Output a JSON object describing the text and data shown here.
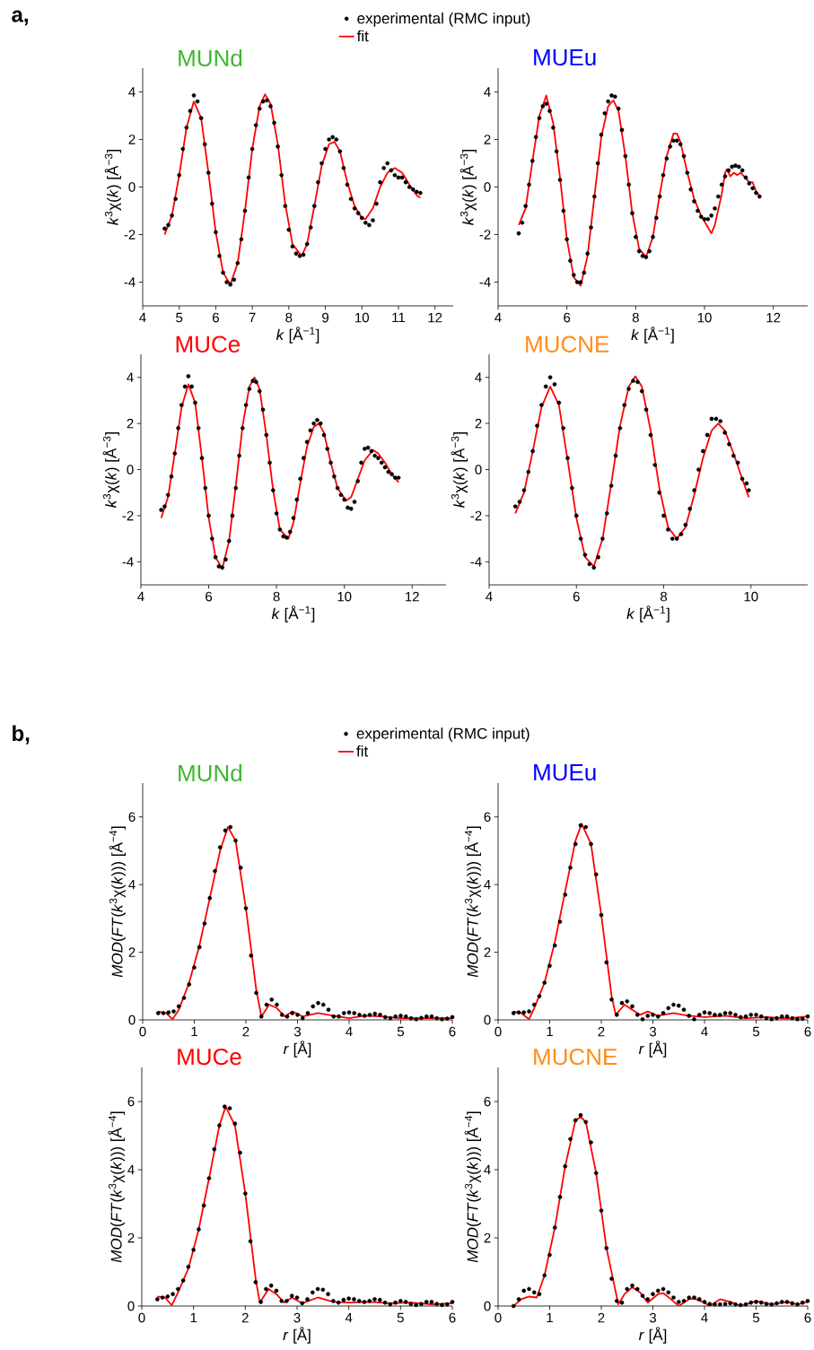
{
  "chart_data": [
    {
      "type": "line",
      "title": "MUNd",
      "xlabel": "*k* [Å$^{−1}$]",
      "ylabel": "*k*$^{3}$χ(*k*) [Å$^{−3}$]",
      "annotations": [
        "a,"
      ],
      "legend": "top",
      "xlim": [
        4,
        12.5
      ],
      "ylim": [
        -5,
        5
      ],
      "xticks": [
        4,
        5,
        6,
        7,
        8,
        9,
        10,
        11,
        12
      ],
      "yticks": [
        -4,
        -2,
        0,
        2,
        4
      ],
      "series": [
        {
          "name": "experimental (RMC input)",
          "type": "scatter",
          "marker": "circle",
          "color": "#000000",
          "x": [
            4.6,
            4.7,
            4.8,
            4.9,
            5.0,
            5.1,
            5.2,
            5.3,
            5.4,
            5.5,
            5.6,
            5.7,
            5.8,
            5.9,
            6.0,
            6.1,
            6.2,
            6.3,
            6.4,
            6.5,
            6.6,
            6.7,
            6.8,
            6.9,
            7.0,
            7.1,
            7.2,
            7.3,
            7.4,
            7.5,
            7.6,
            7.7,
            7.8,
            7.9,
            8.0,
            8.1,
            8.2,
            8.3,
            8.4,
            8.5,
            8.6,
            8.7,
            8.8,
            8.9,
            9.0,
            9.1,
            9.2,
            9.3,
            9.4,
            9.5,
            9.6,
            9.7,
            9.8,
            9.9,
            10.0,
            10.1,
            10.2,
            10.3,
            10.4,
            10.5,
            10.6,
            10.7,
            10.8,
            10.9,
            11.0,
            11.1,
            11.2,
            11.3,
            11.4,
            11.5,
            11.6
          ],
          "values": [
            -1.75,
            -1.6,
            -1.2,
            -0.5,
            0.5,
            1.6,
            2.5,
            3.2,
            3.85,
            3.6,
            2.9,
            1.8,
            0.6,
            -0.7,
            -1.9,
            -2.9,
            -3.6,
            -4.0,
            -4.1,
            -3.9,
            -3.2,
            -2.2,
            -1.0,
            0.4,
            1.6,
            2.6,
            3.3,
            3.6,
            3.65,
            3.4,
            2.7,
            1.7,
            0.5,
            -0.8,
            -1.8,
            -2.5,
            -2.8,
            -2.9,
            -2.85,
            -2.4,
            -1.7,
            -0.8,
            0.2,
            1.0,
            1.6,
            2.0,
            2.1,
            2.0,
            1.5,
            0.8,
            0.1,
            -0.5,
            -0.9,
            -1.1,
            -1.3,
            -1.5,
            -1.6,
            -1.4,
            -0.7,
            0.2,
            0.8,
            1.0,
            0.7,
            0.5,
            0.4,
            0.4,
            0.2,
            0.0,
            -0.1,
            -0.2,
            -0.25
          ]
        },
        {
          "name": "fit",
          "type": "line",
          "marker": "none",
          "color": "#ff0000",
          "x": [
            4.6,
            4.8,
            5.0,
            5.2,
            5.4,
            5.6,
            5.8,
            6.0,
            6.2,
            6.4,
            6.6,
            6.8,
            7.0,
            7.2,
            7.35,
            7.5,
            7.7,
            7.9,
            8.1,
            8.35,
            8.5,
            8.7,
            8.9,
            9.1,
            9.25,
            9.4,
            9.6,
            9.8,
            10.0,
            10.1,
            10.3,
            10.5,
            10.7,
            10.9,
            11.1,
            11.3,
            11.5,
            11.6
          ],
          "values": [
            -2.0,
            -1.2,
            0.5,
            2.5,
            3.6,
            2.9,
            0.6,
            -1.9,
            -3.6,
            -4.1,
            -3.2,
            -1.0,
            1.6,
            3.4,
            3.9,
            3.5,
            1.8,
            -0.7,
            -2.4,
            -2.9,
            -2.4,
            -0.8,
            0.9,
            1.8,
            1.9,
            1.5,
            0.2,
            -0.8,
            -1.3,
            -1.35,
            -0.9,
            0.0,
            0.6,
            0.8,
            0.6,
            0.1,
            -0.35,
            -0.45
          ]
        }
      ]
    },
    {
      "type": "line",
      "title": "MUEu",
      "xlabel": "*k* [Å$^{−1}$]",
      "ylabel": "*k*$^{3}$χ(*k*) [Å$^{−3}$]",
      "xlim": [
        4,
        13
      ],
      "ylim": [
        -5,
        5
      ],
      "xticks": [
        4,
        6,
        8,
        10,
        12
      ],
      "yticks": [
        -4,
        -2,
        0,
        2,
        4
      ],
      "series": [
        {
          "type": "scatter",
          "marker": "circle",
          "color": "#000000",
          "x": [
            4.6,
            4.7,
            4.8,
            4.9,
            5.0,
            5.1,
            5.2,
            5.3,
            5.4,
            5.5,
            5.6,
            5.7,
            5.8,
            5.9,
            6.0,
            6.1,
            6.2,
            6.3,
            6.4,
            6.5,
            6.6,
            6.7,
            6.8,
            6.9,
            7.0,
            7.1,
            7.2,
            7.3,
            7.4,
            7.5,
            7.6,
            7.7,
            7.8,
            7.9,
            8.0,
            8.1,
            8.2,
            8.3,
            8.4,
            8.5,
            8.6,
            8.7,
            8.8,
            8.9,
            9.0,
            9.1,
            9.2,
            9.3,
            9.4,
            9.5,
            9.6,
            9.7,
            9.8,
            9.9,
            10.0,
            10.1,
            10.2,
            10.3,
            10.4,
            10.5,
            10.6,
            10.7,
            10.8,
            10.9,
            11.0,
            11.1,
            11.2,
            11.3,
            11.4,
            11.5,
            11.6
          ],
          "values": [
            -1.95,
            -1.5,
            -0.8,
            0.1,
            1.1,
            2.1,
            2.9,
            3.4,
            3.5,
            3.2,
            2.5,
            1.5,
            0.3,
            -1.0,
            -2.2,
            -3.1,
            -3.7,
            -4.0,
            -4.0,
            -3.6,
            -2.8,
            -1.7,
            -0.4,
            1.0,
            2.2,
            3.1,
            3.6,
            3.85,
            3.8,
            3.3,
            2.4,
            1.3,
            0.1,
            -1.1,
            -2.1,
            -2.7,
            -2.9,
            -2.95,
            -2.7,
            -2.1,
            -1.3,
            -0.4,
            0.5,
            1.2,
            1.7,
            1.95,
            1.95,
            1.8,
            1.3,
            0.6,
            -0.1,
            -0.6,
            -1.0,
            -1.25,
            -1.35,
            -1.35,
            -1.2,
            -0.9,
            -0.4,
            0.1,
            0.45,
            0.7,
            0.85,
            0.9,
            0.85,
            0.7,
            0.4,
            0.15,
            -0.05,
            -0.25,
            -0.4
          ]
        },
        {
          "type": "line",
          "marker": "none",
          "color": "#ff0000",
          "x": [
            4.6,
            4.8,
            5.0,
            5.2,
            5.4,
            5.6,
            5.8,
            6.0,
            6.2,
            6.4,
            6.6,
            6.8,
            7.0,
            7.2,
            7.35,
            7.5,
            7.7,
            7.9,
            8.1,
            8.3,
            8.5,
            8.7,
            8.9,
            9.1,
            9.2,
            9.3,
            9.5,
            9.7,
            9.9,
            10.1,
            10.2,
            10.3,
            10.5,
            10.6,
            10.65,
            10.75,
            10.85,
            10.95,
            11.05,
            11.15,
            11.3,
            11.4,
            11.5,
            11.6
          ],
          "values": [
            -1.6,
            -0.9,
            1.1,
            3.0,
            3.85,
            2.7,
            0.4,
            -2.2,
            -3.8,
            -4.15,
            -2.9,
            -0.4,
            2.1,
            3.4,
            3.65,
            3.2,
            1.3,
            -1.1,
            -2.6,
            -2.95,
            -2.1,
            -0.3,
            1.3,
            2.25,
            2.25,
            1.9,
            0.6,
            -0.5,
            -1.2,
            -1.7,
            -1.95,
            -1.6,
            -0.3,
            0.6,
            0.75,
            0.45,
            0.6,
            0.5,
            0.6,
            0.45,
            0.2,
            0.2,
            -0.2,
            -0.35
          ]
        }
      ]
    },
    {
      "type": "line",
      "title": "MUCe",
      "xlabel": "*k* [Å$^{−1}$]",
      "ylabel": "*k*$^{3}$χ(*k*) [Å$^{−3}$]",
      "xlim": [
        4,
        13
      ],
      "ylim": [
        -5,
        5
      ],
      "xticks": [
        4,
        6,
        8,
        10,
        12
      ],
      "yticks": [
        -4,
        -2,
        0,
        2,
        4
      ],
      "series": [
        {
          "type": "scatter",
          "marker": "circle",
          "color": "#000000",
          "x": [
            4.6,
            4.7,
            4.8,
            4.9,
            5.0,
            5.1,
            5.2,
            5.3,
            5.4,
            5.5,
            5.6,
            5.7,
            5.8,
            5.9,
            6.0,
            6.1,
            6.2,
            6.3,
            6.4,
            6.5,
            6.6,
            6.7,
            6.8,
            6.9,
            7.0,
            7.1,
            7.2,
            7.3,
            7.4,
            7.5,
            7.6,
            7.7,
            7.8,
            7.9,
            8.0,
            8.1,
            8.2,
            8.3,
            8.4,
            8.5,
            8.6,
            8.7,
            8.8,
            8.9,
            9.0,
            9.1,
            9.2,
            9.3,
            9.4,
            9.5,
            9.6,
            9.7,
            9.8,
            9.9,
            10.0,
            10.1,
            10.2,
            10.3,
            10.4,
            10.5,
            10.6,
            10.7,
            10.8,
            10.9,
            11.0,
            11.1,
            11.2,
            11.3,
            11.4,
            11.5,
            11.6
          ],
          "values": [
            -1.75,
            -1.6,
            -1.1,
            -0.3,
            0.7,
            1.8,
            2.8,
            3.6,
            4.05,
            3.6,
            2.9,
            1.8,
            0.5,
            -0.8,
            -2.0,
            -3.0,
            -3.8,
            -4.2,
            -4.25,
            -3.9,
            -3.1,
            -2.0,
            -0.8,
            0.6,
            1.8,
            2.8,
            3.5,
            3.85,
            3.8,
            3.4,
            2.6,
            1.5,
            0.3,
            -0.9,
            -1.9,
            -2.6,
            -2.9,
            -2.95,
            -2.7,
            -2.1,
            -1.3,
            -0.4,
            0.5,
            1.2,
            1.7,
            2.0,
            2.15,
            2.0,
            1.5,
            0.9,
            0.3,
            -0.3,
            -0.8,
            -1.1,
            -1.3,
            -1.65,
            -1.7,
            -1.4,
            -0.5,
            0.3,
            0.9,
            0.95,
            0.8,
            0.6,
            0.5,
            0.3,
            0.1,
            -0.1,
            -0.2,
            -0.35,
            -0.35
          ]
        },
        {
          "type": "line",
          "marker": "none",
          "color": "#ff0000",
          "x": [
            4.6,
            4.8,
            5.0,
            5.2,
            5.4,
            5.6,
            5.8,
            6.0,
            6.2,
            6.4,
            6.6,
            6.8,
            7.0,
            7.2,
            7.35,
            7.5,
            7.7,
            7.9,
            8.1,
            8.35,
            8.5,
            8.7,
            8.9,
            9.1,
            9.25,
            9.4,
            9.6,
            9.8,
            10.05,
            10.2,
            10.4,
            10.6,
            10.85,
            11.0,
            11.2,
            11.4,
            11.6
          ],
          "values": [
            -2.1,
            -1.2,
            0.7,
            2.7,
            3.7,
            2.9,
            0.5,
            -2.1,
            -3.8,
            -4.3,
            -3.1,
            -0.7,
            1.9,
            3.6,
            4.0,
            3.5,
            1.5,
            -0.9,
            -2.6,
            -3.0,
            -2.3,
            -0.6,
            1.0,
            1.85,
            2.0,
            1.6,
            0.3,
            -0.8,
            -1.35,
            -1.2,
            -0.4,
            0.4,
            0.85,
            0.7,
            0.3,
            -0.2,
            -0.55
          ]
        }
      ]
    },
    {
      "type": "line",
      "title": "MUCNE",
      "xlabel": "*k* [Å$^{−1}$]",
      "ylabel": "*k*$^{3}$χ(*k*) [Å$^{−3}$]",
      "xlim": [
        4,
        11.3
      ],
      "ylim": [
        -5,
        5
      ],
      "xticks": [
        4,
        6,
        8,
        10
      ],
      "yticks": [
        -4,
        -2,
        0,
        2,
        4
      ],
      "series": [
        {
          "type": "scatter",
          "marker": "circle",
          "color": "#000000",
          "x": [
            4.6,
            4.7,
            4.8,
            4.9,
            5.0,
            5.1,
            5.2,
            5.3,
            5.4,
            5.5,
            5.6,
            5.7,
            5.8,
            5.9,
            6.0,
            6.1,
            6.2,
            6.3,
            6.4,
            6.5,
            6.6,
            6.7,
            6.8,
            6.9,
            7.0,
            7.1,
            7.2,
            7.3,
            7.4,
            7.5,
            7.6,
            7.7,
            7.8,
            7.9,
            8.0,
            8.1,
            8.2,
            8.3,
            8.4,
            8.5,
            8.6,
            8.7,
            8.8,
            8.9,
            9.0,
            9.1,
            9.2,
            9.3,
            9.4,
            9.5,
            9.6,
            9.7,
            9.8,
            9.9,
            9.95
          ],
          "values": [
            -1.6,
            -1.4,
            -0.9,
            -0.1,
            0.8,
            1.9,
            2.8,
            3.6,
            4.0,
            3.7,
            2.9,
            1.8,
            0.5,
            -0.8,
            -2.0,
            -3.0,
            -3.7,
            -4.1,
            -4.25,
            -3.8,
            -3.0,
            -1.9,
            -0.7,
            0.6,
            1.8,
            2.8,
            3.5,
            3.85,
            3.8,
            3.4,
            2.6,
            1.5,
            0.2,
            -1.0,
            -2.0,
            -2.6,
            -3.0,
            -3.0,
            -2.8,
            -2.4,
            -1.7,
            -0.9,
            0.0,
            0.8,
            1.5,
            2.2,
            2.2,
            2.1,
            1.6,
            1.1,
            0.6,
            0.3,
            -0.4,
            -0.6,
            -0.9
          ]
        },
        {
          "type": "line",
          "marker": "none",
          "color": "#ff0000",
          "x": [
            4.6,
            4.8,
            5.0,
            5.2,
            5.4,
            5.6,
            5.8,
            6.0,
            6.2,
            6.4,
            6.6,
            6.8,
            7.0,
            7.2,
            7.35,
            7.5,
            7.7,
            7.9,
            8.1,
            8.3,
            8.5,
            8.7,
            8.9,
            9.1,
            9.25,
            9.4,
            9.6,
            9.8,
            9.95
          ],
          "values": [
            -1.9,
            -1.0,
            0.8,
            2.7,
            3.6,
            2.8,
            0.4,
            -2.1,
            -3.8,
            -4.2,
            -3.0,
            -0.6,
            1.9,
            3.6,
            4.05,
            3.6,
            1.7,
            -0.8,
            -2.5,
            -3.0,
            -2.5,
            -1.1,
            0.5,
            1.7,
            2.0,
            1.7,
            0.7,
            -0.4,
            -1.2
          ]
        }
      ]
    },
    {
      "type": "line",
      "title": "MUNd",
      "xlabel": "*r* [Å]",
      "ylabel": "*MOD*(*FT*(*k*$^{3}$χ(*k*))) [Å$^{−4}$]",
      "annotations": [
        "b,"
      ],
      "legend": "top",
      "xlim": [
        0,
        6
      ],
      "ylim": [
        0,
        7
      ],
      "xticks": [
        0,
        1,
        2,
        3,
        4,
        5,
        6
      ],
      "yticks": [
        0,
        2,
        4,
        6
      ],
      "series": [
        {
          "name": "experimental (RMC input)",
          "type": "scatter",
          "marker": "circle",
          "color": "#000000",
          "x": [
            0.3,
            0.4,
            0.5,
            0.6,
            0.7,
            0.8,
            0.9,
            1.0,
            1.1,
            1.2,
            1.3,
            1.4,
            1.5,
            1.6,
            1.7,
            1.8,
            1.9,
            2.0,
            2.1,
            2.2,
            2.3,
            2.4,
            2.5,
            2.6,
            2.7,
            2.8,
            2.9,
            3.0,
            3.1,
            3.2,
            3.3,
            3.4,
            3.5,
            3.6,
            3.7,
            3.8,
            3.9,
            4.0,
            4.1,
            4.2,
            4.3,
            4.4,
            4.5,
            4.6,
            4.7,
            4.8,
            4.9,
            5.0,
            5.1,
            5.2,
            5.3,
            5.4,
            5.5,
            5.6,
            5.7,
            5.8,
            5.9,
            6.0
          ],
          "values": [
            0.2,
            0.2,
            0.22,
            0.25,
            0.4,
            0.65,
            1.05,
            1.55,
            2.15,
            2.85,
            3.6,
            4.4,
            5.1,
            5.6,
            5.7,
            5.3,
            4.5,
            3.3,
            1.9,
            0.8,
            0.1,
            0.45,
            0.6,
            0.45,
            0.15,
            0.1,
            0.2,
            0.15,
            0.05,
            0.2,
            0.4,
            0.5,
            0.45,
            0.3,
            0.1,
            0.1,
            0.2,
            0.22,
            0.2,
            0.15,
            0.12,
            0.15,
            0.18,
            0.15,
            0.08,
            0.05,
            0.1,
            0.12,
            0.1,
            0.05,
            0.02,
            0.06,
            0.1,
            0.1,
            0.05,
            0.02,
            0.04,
            0.08
          ]
        },
        {
          "name": "fit",
          "type": "line",
          "marker": "none",
          "color": "#ff0000",
          "x": [
            0.3,
            0.45,
            0.58,
            0.7,
            0.9,
            1.1,
            1.3,
            1.5,
            1.65,
            1.8,
            2.0,
            2.2,
            2.3,
            2.45,
            2.6,
            2.75,
            2.9,
            3.1,
            3.4,
            3.7,
            4.0,
            4.3,
            4.6,
            5.0,
            5.5,
            6.0
          ],
          "values": [
            0.25,
            0.2,
            0.02,
            0.3,
            1.1,
            2.2,
            3.6,
            5.0,
            5.7,
            5.3,
            3.3,
            0.9,
            0.1,
            0.45,
            0.35,
            0.1,
            0.25,
            0.1,
            0.2,
            0.12,
            0.05,
            0.12,
            0.1,
            0.05,
            0.05,
            0.05
          ]
        }
      ]
    },
    {
      "type": "line",
      "title": "MUEu",
      "xlabel": "*r* [Å]",
      "ylabel": "*MOD*(*FT*(*k*$^{3}$χ(*k*))) [Å$^{−4}$]",
      "xlim": [
        0,
        6
      ],
      "ylim": [
        0,
        7
      ],
      "xticks": [
        0,
        1,
        2,
        3,
        4,
        5,
        6
      ],
      "yticks": [
        0,
        2,
        4,
        6
      ],
      "series": [
        {
          "type": "scatter",
          "marker": "circle",
          "color": "#000000",
          "x": [
            0.3,
            0.4,
            0.5,
            0.6,
            0.7,
            0.8,
            0.9,
            1.0,
            1.1,
            1.2,
            1.3,
            1.4,
            1.5,
            1.6,
            1.7,
            1.8,
            1.9,
            2.0,
            2.1,
            2.2,
            2.3,
            2.4,
            2.5,
            2.6,
            2.7,
            2.8,
            2.9,
            3.0,
            3.1,
            3.2,
            3.3,
            3.4,
            3.5,
            3.6,
            3.7,
            3.8,
            3.9,
            4.0,
            4.1,
            4.2,
            4.3,
            4.4,
            4.5,
            4.6,
            4.7,
            4.8,
            4.9,
            5.0,
            5.1,
            5.2,
            5.3,
            5.4,
            5.5,
            5.6,
            5.7,
            5.8,
            5.9,
            6.0
          ],
          "values": [
            0.2,
            0.22,
            0.22,
            0.25,
            0.45,
            0.7,
            1.1,
            1.6,
            2.2,
            2.9,
            3.7,
            4.5,
            5.2,
            5.75,
            5.7,
            5.2,
            4.3,
            3.1,
            1.7,
            0.6,
            0.15,
            0.5,
            0.55,
            0.4,
            0.15,
            0.02,
            0.12,
            0.15,
            0.1,
            0.2,
            0.35,
            0.45,
            0.42,
            0.3,
            0.12,
            0.02,
            0.15,
            0.22,
            0.2,
            0.15,
            0.15,
            0.2,
            0.2,
            0.15,
            0.08,
            0.1,
            0.15,
            0.15,
            0.1,
            0.05,
            0.02,
            0.05,
            0.1,
            0.1,
            0.05,
            0.02,
            0.03,
            0.1
          ]
        },
        {
          "type": "line",
          "marker": "none",
          "color": "#ff0000",
          "x": [
            0.3,
            0.45,
            0.6,
            0.7,
            0.9,
            1.1,
            1.3,
            1.5,
            1.62,
            1.8,
            2.0,
            2.2,
            2.28,
            2.45,
            2.6,
            2.75,
            2.9,
            3.1,
            3.4,
            3.7,
            4.0,
            4.4,
            4.8,
            5.2,
            5.6,
            6.0
          ],
          "values": [
            0.25,
            0.2,
            0.02,
            0.35,
            1.1,
            2.3,
            3.8,
            5.3,
            5.8,
            5.2,
            3.1,
            0.7,
            0.15,
            0.45,
            0.3,
            0.15,
            0.25,
            0.12,
            0.2,
            0.12,
            0.08,
            0.12,
            0.05,
            0.08,
            0.04,
            0.1
          ]
        }
      ]
    },
    {
      "type": "line",
      "title": "MUCe",
      "xlabel": "*r* [Å]",
      "ylabel": "*MOD*(*FT*(*k*$^{3}$χ(*k*))) [Å$^{−4}$]",
      "xlim": [
        0,
        6
      ],
      "ylim": [
        0,
        7
      ],
      "xticks": [
        0,
        1,
        2,
        3,
        4,
        5,
        6
      ],
      "yticks": [
        0,
        2,
        4,
        6
      ],
      "series": [
        {
          "type": "scatter",
          "marker": "circle",
          "color": "#000000",
          "x": [
            0.3,
            0.4,
            0.5,
            0.6,
            0.7,
            0.8,
            0.9,
            1.0,
            1.1,
            1.2,
            1.3,
            1.4,
            1.5,
            1.6,
            1.7,
            1.8,
            1.9,
            2.0,
            2.1,
            2.2,
            2.3,
            2.4,
            2.5,
            2.6,
            2.7,
            2.8,
            2.9,
            3.0,
            3.1,
            3.2,
            3.3,
            3.4,
            3.5,
            3.6,
            3.7,
            3.8,
            3.9,
            4.0,
            4.1,
            4.2,
            4.3,
            4.4,
            4.5,
            4.6,
            4.7,
            4.8,
            4.9,
            5.0,
            5.1,
            5.2,
            5.3,
            5.4,
            5.5,
            5.6,
            5.7,
            5.8,
            5.9,
            6.0
          ],
          "values": [
            0.2,
            0.25,
            0.28,
            0.35,
            0.5,
            0.75,
            1.15,
            1.65,
            2.25,
            2.95,
            3.75,
            4.6,
            5.3,
            5.85,
            5.8,
            5.35,
            4.5,
            3.3,
            1.9,
            0.7,
            0.12,
            0.5,
            0.6,
            0.45,
            0.15,
            0.15,
            0.3,
            0.25,
            0.08,
            0.2,
            0.4,
            0.5,
            0.48,
            0.35,
            0.15,
            0.1,
            0.18,
            0.22,
            0.2,
            0.15,
            0.12,
            0.15,
            0.2,
            0.18,
            0.1,
            0.05,
            0.1,
            0.15,
            0.12,
            0.06,
            0.03,
            0.06,
            0.12,
            0.12,
            0.06,
            0.03,
            0.05,
            0.12
          ]
        },
        {
          "type": "line",
          "marker": "none",
          "color": "#ff0000",
          "x": [
            0.3,
            0.45,
            0.58,
            0.7,
            0.9,
            1.1,
            1.3,
            1.5,
            1.62,
            1.8,
            2.0,
            2.2,
            2.28,
            2.45,
            2.6,
            2.75,
            2.9,
            3.1,
            3.4,
            3.7,
            4.0,
            4.4,
            4.8,
            5.2,
            5.6,
            6.0
          ],
          "values": [
            0.28,
            0.25,
            0.02,
            0.4,
            1.1,
            2.25,
            3.75,
            5.3,
            5.85,
            5.3,
            3.3,
            0.8,
            0.1,
            0.5,
            0.35,
            0.1,
            0.25,
            0.08,
            0.25,
            0.12,
            0.1,
            0.12,
            0.08,
            0.1,
            0.05,
            0.08
          ]
        }
      ]
    },
    {
      "type": "line",
      "title": "MUCNE",
      "xlabel": "*r* [Å]",
      "ylabel": "*MOD*(*FT*(*k*$^{3}$χ(*k*))) [Å$^{−4}$]",
      "xlim": [
        0,
        6
      ],
      "ylim": [
        0,
        7
      ],
      "xticks": [
        0,
        1,
        2,
        3,
        4,
        5,
        6
      ],
      "yticks": [
        0,
        2,
        4,
        6
      ],
      "series": [
        {
          "type": "scatter",
          "marker": "circle",
          "color": "#000000",
          "x": [
            0.3,
            0.4,
            0.5,
            0.6,
            0.7,
            0.8,
            0.9,
            1.0,
            1.1,
            1.2,
            1.3,
            1.4,
            1.5,
            1.6,
            1.7,
            1.8,
            1.9,
            2.0,
            2.1,
            2.2,
            2.3,
            2.4,
            2.5,
            2.6,
            2.7,
            2.8,
            2.9,
            3.0,
            3.1,
            3.2,
            3.3,
            3.4,
            3.5,
            3.6,
            3.7,
            3.8,
            3.9,
            4.0,
            4.1,
            4.2,
            4.3,
            4.4,
            4.5,
            4.6,
            4.7,
            4.8,
            4.9,
            5.0,
            5.1,
            5.2,
            5.3,
            5.4,
            5.5,
            5.6,
            5.7,
            5.8,
            5.9,
            6.0
          ],
          "values": [
            0.0,
            0.2,
            0.45,
            0.5,
            0.4,
            0.35,
            0.9,
            1.5,
            2.3,
            3.2,
            4.1,
            4.9,
            5.45,
            5.6,
            5.4,
            4.8,
            3.9,
            2.8,
            1.7,
            0.8,
            0.15,
            0.1,
            0.5,
            0.6,
            0.5,
            0.3,
            0.2,
            0.35,
            0.45,
            0.5,
            0.4,
            0.25,
            0.12,
            0.15,
            0.25,
            0.25,
            0.2,
            0.12,
            0.06,
            0.05,
            0.05,
            0.06,
            0.08,
            0.05,
            0.03,
            0.05,
            0.1,
            0.12,
            0.1,
            0.06,
            0.05,
            0.08,
            0.12,
            0.12,
            0.08,
            0.05,
            0.1,
            0.15
          ]
        },
        {
          "type": "line",
          "marker": "none",
          "color": "#ff0000",
          "x": [
            0.3,
            0.45,
            0.6,
            0.75,
            0.9,
            1.1,
            1.3,
            1.5,
            1.6,
            1.7,
            1.9,
            2.1,
            2.33,
            2.45,
            2.6,
            2.75,
            2.9,
            3.1,
            3.2,
            3.35,
            3.5,
            3.7,
            3.8,
            4.0,
            4.1,
            4.3,
            4.5,
            4.7,
            5.0,
            5.3,
            5.6,
            5.8,
            6.0
          ],
          "values": [
            0.0,
            0.2,
            0.28,
            0.25,
            0.9,
            2.3,
            4.1,
            5.45,
            5.55,
            5.4,
            3.9,
            1.7,
            0.05,
            0.35,
            0.55,
            0.4,
            0.1,
            0.35,
            0.38,
            0.2,
            0.0,
            0.2,
            0.22,
            0.1,
            0.0,
            0.2,
            0.12,
            0.0,
            0.15,
            0.05,
            0.12,
            0.05,
            0.12
          ]
        }
      ]
    }
  ]
}
